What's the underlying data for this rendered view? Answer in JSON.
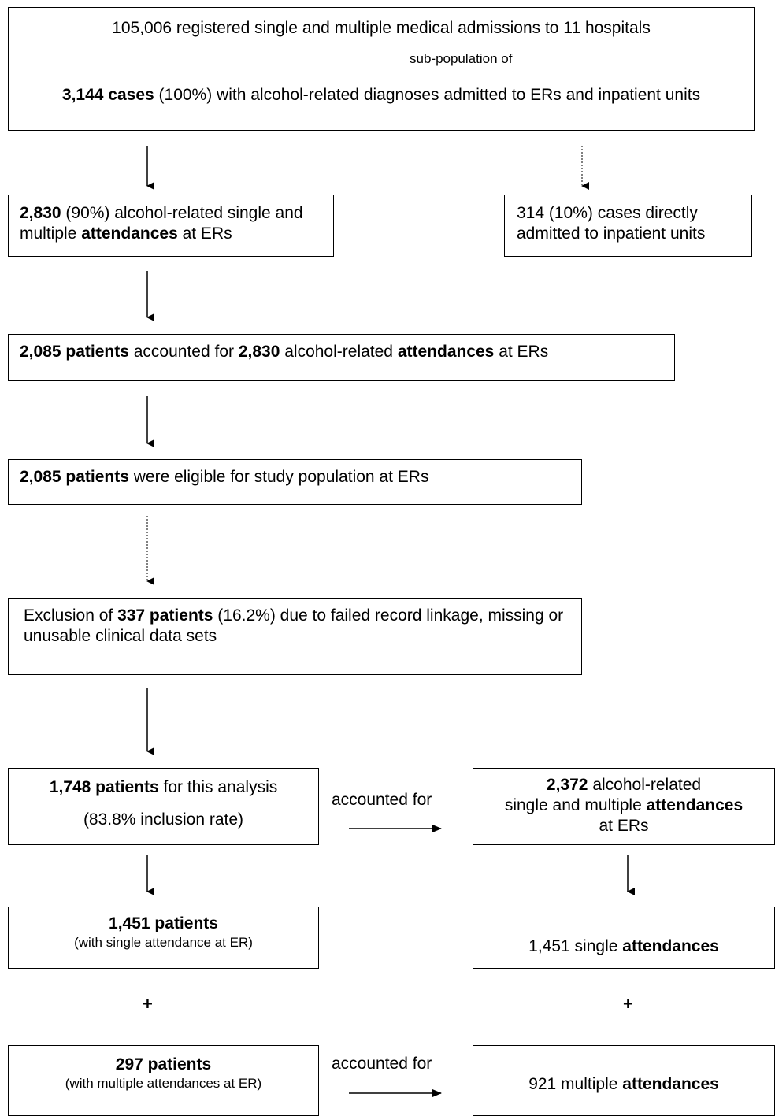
{
  "top": {
    "line1": "105,006 registered single and multiple medical admissions to 11 hospitals",
    "subpop": "sub-population of",
    "cases_bold": "3,144 cases",
    "cases_rest": " (100%) with alcohol-related diagnoses admitted to ERs and inpatient units"
  },
  "er_attend": {
    "bold1": "2,830",
    "text1": " (90%) alcohol-related single and multiple ",
    "bold2": "attendances",
    "text2": " at ERs"
  },
  "inpatient": {
    "text": "314 (10%) cases directly admitted to inpatient units"
  },
  "patients_accounted": {
    "bold1": "2,085 patients",
    "text1": " accounted for ",
    "bold2": "2,830",
    "text2": " alcohol-related ",
    "bold3": "attendances",
    "text3": " at ERs"
  },
  "eligible": {
    "bold1": "2,085 patients",
    "text1": " were eligible for study population at ERs"
  },
  "exclusion": {
    "text1": "Exclusion of ",
    "bold1": "337 patients",
    "text2": " (16.2%) due to failed record linkage, missing or unusable clinical data sets"
  },
  "analysis": {
    "bold1": "1,748 patients",
    "text1": " for this analysis",
    "line2": "(83.8% inclusion rate)"
  },
  "accounted_for_1": "accounted for",
  "attend_2372": {
    "bold1": "2,372",
    "text1": " alcohol-related",
    "text2": "single and multiple ",
    "bold2": "attendances",
    "text3": "at ERs"
  },
  "single_patients": {
    "bold1": "1,451 patients",
    "text1": "(with single attendance at ER)"
  },
  "single_attend": {
    "text1": "1,451 single ",
    "bold1": "attendances"
  },
  "plus_left": "+",
  "plus_right": "+",
  "multi_patients": {
    "bold1": "297 patients",
    "text1": "(with multiple attendances at ER)"
  },
  "accounted_for_2": "accounted for",
  "multi_attend": {
    "text1": "921 multiple ",
    "bold1": "attendances"
  }
}
